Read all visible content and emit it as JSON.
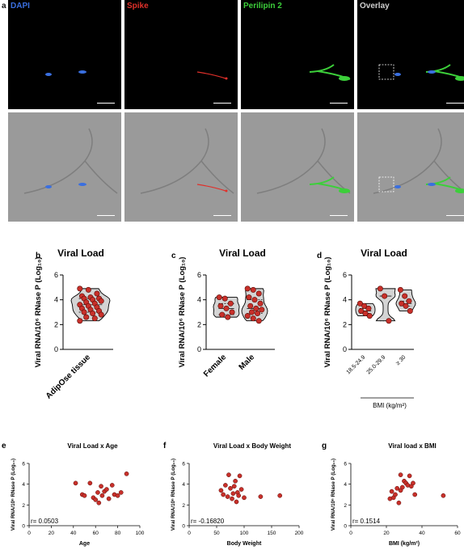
{
  "figure": {
    "panel_a": {
      "letter": "a",
      "channels": [
        {
          "label": "DAPI",
          "color": "#3a6fe0"
        },
        {
          "label": "Spike",
          "color": "#e0302a"
        },
        {
          "label": "Perilipin 2",
          "color": "#3ccf3a"
        },
        {
          "label": "Overlay",
          "color": "#cfcfcf"
        }
      ]
    },
    "colors": {
      "point_fill": "#c8302a",
      "violin_fill": "#d4d4d4"
    }
  },
  "chart_data": [
    {
      "panel": "b",
      "type": "scatter",
      "title": "Viral Load",
      "ylabel": "Viral  RNA/10⁶ RNase P (Log₁₀)",
      "ylim": [
        0,
        6
      ],
      "yticks": [
        0,
        2,
        4,
        6
      ],
      "categories": [
        "AdipOse tissue"
      ],
      "groups": [
        {
          "name": "AdipOse tissue",
          "values": [
            4.9,
            4.8,
            4.5,
            4.3,
            4.2,
            4.1,
            4.1,
            4.0,
            3.9,
            3.8,
            3.7,
            3.6,
            3.5,
            3.4,
            3.3,
            3.2,
            3.1,
            3.0,
            2.9,
            2.8,
            2.6,
            2.5,
            2.3
          ]
        }
      ]
    },
    {
      "panel": "c",
      "type": "scatter",
      "title": "Viral Load",
      "ylabel": "Viral RNA/10⁶ RNase P (Log₁₀)",
      "ylim": [
        0,
        6
      ],
      "yticks": [
        0,
        2,
        4,
        6
      ],
      "categories": [
        "Female",
        "Male"
      ],
      "groups": [
        {
          "name": "Female",
          "values": [
            4.2,
            4.1,
            3.7,
            3.5,
            3.3,
            3.0,
            2.8,
            2.6
          ]
        },
        {
          "name": "Male",
          "values": [
            4.9,
            4.8,
            4.5,
            4.2,
            4.0,
            3.7,
            3.5,
            3.3,
            3.2,
            3.0,
            2.9,
            2.7,
            2.5,
            2.3
          ]
        }
      ]
    },
    {
      "panel": "d",
      "type": "scatter",
      "title": "Viral Load",
      "ylabel": "Viral  RNA/10⁶ RNase P (Log₁₀)",
      "ylim": [
        0,
        6
      ],
      "yticks": [
        0,
        2,
        4,
        6
      ],
      "categories": [
        "18.5-24.9",
        "25.0-29.9",
        "≥ 30"
      ],
      "xlabel": "BMI (kg/m²)",
      "groups": [
        {
          "name": "18.5-24.9",
          "values": [
            3.7,
            3.5,
            3.3,
            3.1,
            2.9,
            2.7
          ]
        },
        {
          "name": "25.0-29.9",
          "values": [
            4.9,
            4.3,
            2.3
          ]
        },
        {
          "name": "≥ 30",
          "values": [
            4.8,
            4.3,
            3.9,
            3.7,
            3.5,
            3.1
          ]
        }
      ]
    },
    {
      "panel": "e",
      "type": "scatter",
      "title": "Viral Load x Age",
      "xlabel": "Age",
      "ylabel": "Viral RNA/10⁶ RNase P (Log₁₀)",
      "xlim": [
        0,
        100
      ],
      "ylim": [
        0,
        6
      ],
      "xticks": [
        0,
        20,
        40,
        60,
        80,
        100
      ],
      "yticks": [
        0,
        2,
        4,
        6
      ],
      "annotation": "r= 0.0503",
      "x": [
        42,
        48,
        50,
        55,
        58,
        60,
        62,
        63,
        65,
        66,
        68,
        70,
        72,
        75,
        77,
        80,
        83,
        88
      ],
      "y": [
        4.1,
        3.0,
        2.9,
        4.1,
        2.7,
        2.5,
        3.2,
        2.2,
        3.8,
        2.9,
        3.3,
        3.5,
        2.6,
        3.9,
        3.0,
        2.9,
        3.2,
        5.0
      ]
    },
    {
      "panel": "f",
      "type": "scatter",
      "title": "Viral Load x Body Weight",
      "xlabel": "Body Weight",
      "ylabel": "Viral RNA/10⁶ RNase P (Log₁₀)",
      "xlim": [
        0,
        200
      ],
      "ylim": [
        0,
        6
      ],
      "xticks": [
        0,
        50,
        100,
        150,
        200
      ],
      "yticks": [
        0,
        2,
        4,
        6
      ],
      "annotation": "r= -0.16820",
      "x": [
        58,
        62,
        66,
        70,
        72,
        75,
        78,
        80,
        82,
        84,
        86,
        88,
        90,
        92,
        95,
        100,
        130,
        165
      ],
      "y": [
        3.4,
        3.0,
        3.9,
        2.8,
        4.9,
        3.6,
        2.6,
        3.1,
        3.8,
        4.3,
        2.3,
        3.2,
        2.9,
        4.8,
        3.5,
        2.7,
        2.8,
        2.9
      ]
    },
    {
      "panel": "g",
      "type": "scatter",
      "title": "Viral load x BMI",
      "xlabel": "BMI (kg/m²)",
      "ylabel": "Viral RNA/10⁶ RNase P (Log₁₀)",
      "xlim": [
        0,
        60
      ],
      "ylim": [
        0,
        6
      ],
      "xticks": [
        0,
        20,
        40,
        60
      ],
      "yticks": [
        0,
        2,
        4,
        6
      ],
      "annotation": "r= 0.1514",
      "x": [
        22,
        23,
        24,
        25,
        26,
        27,
        28,
        28,
        29,
        30,
        31,
        32,
        33,
        34,
        35,
        36,
        52
      ],
      "y": [
        2.6,
        3.3,
        2.7,
        3.0,
        3.6,
        2.2,
        4.9,
        3.4,
        3.7,
        4.3,
        4.1,
        3.9,
        4.8,
        3.8,
        4.1,
        3.0,
        2.9
      ]
    }
  ]
}
